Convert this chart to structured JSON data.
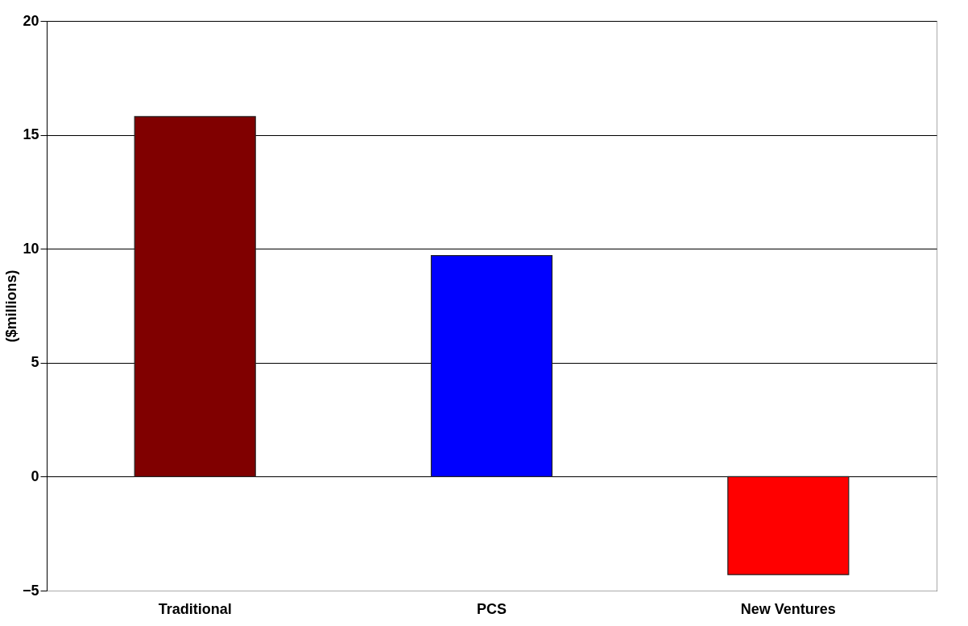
{
  "chart_data": {
    "type": "bar",
    "ylabel": "($millions)",
    "categories": [
      "Traditional",
      "PCS",
      "New Ventures"
    ],
    "values": [
      15.8,
      9.7,
      -4.3
    ],
    "colors": [
      "#800000",
      "#0000ff",
      "#ff0000"
    ],
    "ylim": [
      -5,
      20
    ],
    "yticks": [
      -5,
      0,
      5,
      10,
      15,
      20
    ],
    "grid": "y"
  }
}
